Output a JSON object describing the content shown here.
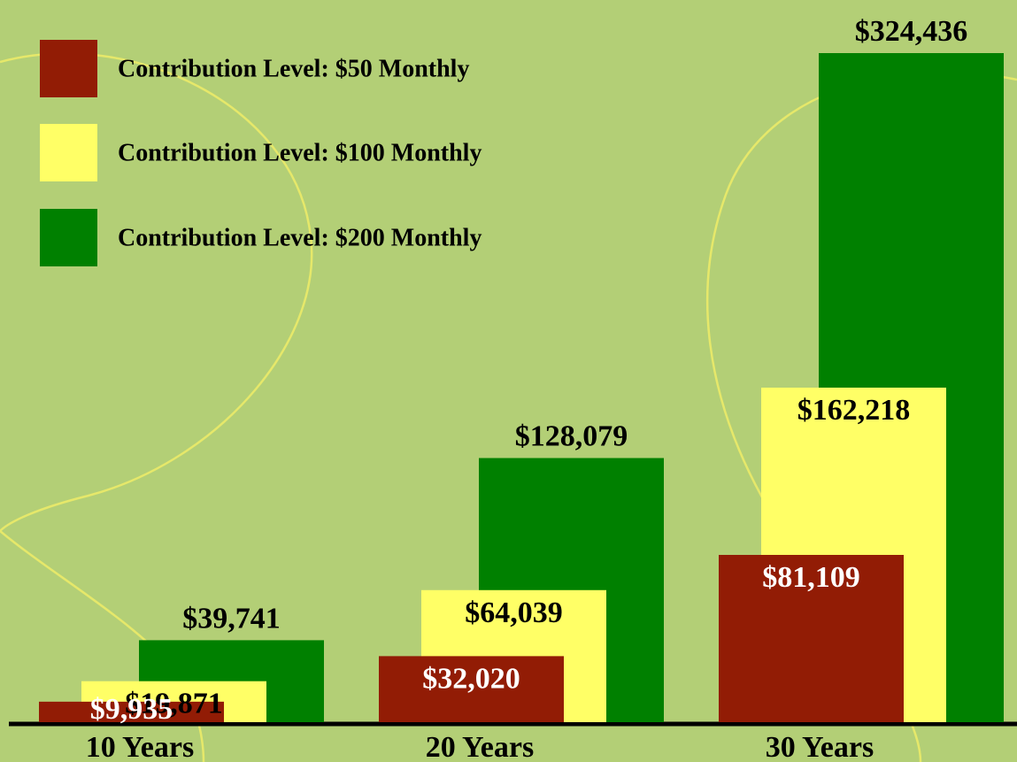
{
  "chart_data": {
    "type": "bar",
    "categories": [
      "10 Years",
      "20 Years",
      "30 Years"
    ],
    "series": [
      {
        "name": "Contribution Level: $50 Monthly",
        "color": "#921c05",
        "values": [
          9935,
          32020,
          81109
        ],
        "value_labels": [
          "$9,935",
          "$32,020",
          "$81,109"
        ]
      },
      {
        "name": "Contribution Level: $100 Monthly",
        "color": "#ffff66",
        "values": [
          19871,
          64039,
          162218
        ],
        "value_labels": [
          "$19,871",
          "$64,039",
          "$162,218"
        ]
      },
      {
        "name": "Contribution Level: $200 Monthly",
        "color": "#008000",
        "values": [
          39741,
          128079,
          324436
        ],
        "value_labels": [
          "$39,741",
          "$128,079",
          "$324,436"
        ]
      }
    ],
    "legend": "top-left"
  }
}
